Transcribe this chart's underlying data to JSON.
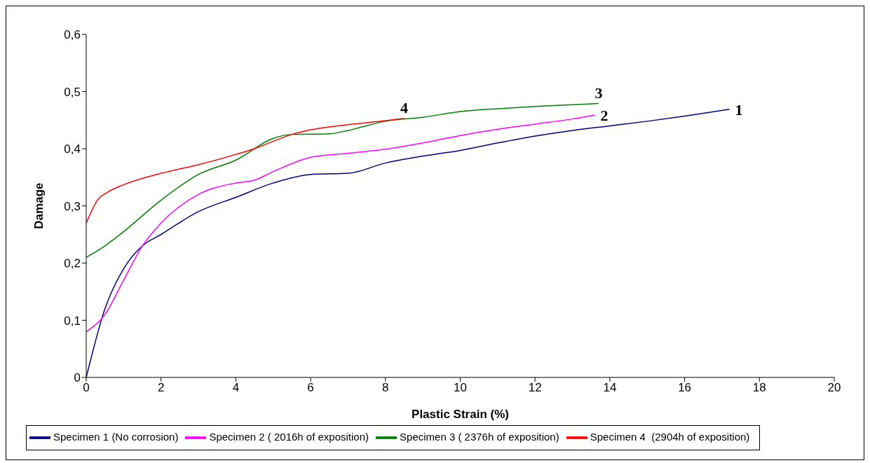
{
  "chart_data": {
    "type": "line",
    "xlabel": "Plastic Strain (%)",
    "ylabel": "Damage",
    "xlim": [
      0,
      20
    ],
    "xticks": [
      0,
      2,
      4,
      6,
      8,
      10,
      12,
      14,
      16,
      18,
      20
    ],
    "ylim": [
      0,
      0.6
    ],
    "yticks": [
      0,
      {
        "value": 0.1,
        "label": "0,1"
      },
      {
        "value": 0.2,
        "label": "0,2"
      },
      {
        "value": 0.3,
        "label": "0,3"
      },
      {
        "value": 0.4,
        "label": "0,4"
      },
      {
        "value": 0.5,
        "label": "0,5"
      },
      {
        "value": 0.6,
        "label": "0,6"
      }
    ],
    "grid": false,
    "legend": "bottom",
    "marker": "none",
    "line_style": "solid",
    "series": [
      {
        "name": "Specimen 1 (No corrosion)",
        "color": "#000080",
        "x": [
          0,
          0.5,
          1,
          1.5,
          2,
          3,
          4,
          5,
          6,
          7,
          8,
          9,
          10,
          11,
          12,
          13,
          14,
          15,
          16,
          17.2
        ],
        "values": [
          0,
          0.12,
          0.19,
          0.23,
          0.25,
          0.29,
          0.315,
          0.34,
          0.355,
          0.357,
          0.375,
          0.387,
          0.397,
          0.41,
          0.422,
          0.432,
          0.44,
          0.448,
          0.457,
          0.469
        ]
      },
      {
        "name": "Specimen 2 ( 2016h of exposition)",
        "color": "#ff00ff",
        "x": [
          0,
          0.5,
          1,
          1.5,
          2,
          3,
          4,
          4.5,
          5,
          6,
          7,
          8,
          9,
          10,
          11,
          12,
          13,
          13.6
        ],
        "values": [
          0.08,
          0.11,
          0.17,
          0.23,
          0.27,
          0.32,
          0.34,
          0.345,
          0.36,
          0.385,
          0.392,
          0.399,
          0.41,
          0.423,
          0.434,
          0.443,
          0.452,
          0.459
        ]
      },
      {
        "name": "Specimen 3 ( 2376h of exposition)",
        "color": "#008000",
        "x": [
          0,
          0.5,
          1,
          2,
          3,
          4,
          5,
          5.5,
          6.5,
          7,
          8,
          9,
          10,
          11,
          12,
          13,
          13.7
        ],
        "values": [
          0.21,
          0.23,
          0.255,
          0.31,
          0.355,
          0.38,
          0.418,
          0.425,
          0.426,
          0.432,
          0.448,
          0.455,
          0.465,
          0.47,
          0.474,
          0.477,
          0.479
        ]
      },
      {
        "name": "Specimen 4  (2904h of exposition)",
        "color": "#ff0000",
        "x": [
          0,
          0.3,
          0.6,
          1,
          2,
          3,
          4,
          4.5,
          5,
          5.5,
          6,
          7,
          8,
          8.5
        ],
        "values": [
          0.27,
          0.31,
          0.325,
          0.337,
          0.357,
          0.372,
          0.39,
          0.4,
          0.413,
          0.425,
          0.433,
          0.442,
          0.449,
          0.453
        ]
      }
    ],
    "annotations": [
      {
        "text": "1",
        "x": 17.2,
        "y": 0.469
      },
      {
        "text": "2",
        "x": 13.6,
        "y": 0.459
      },
      {
        "text": "3",
        "x": 13.7,
        "y": 0.479
      },
      {
        "text": "4",
        "x": 8.5,
        "y": 0.453
      }
    ]
  }
}
